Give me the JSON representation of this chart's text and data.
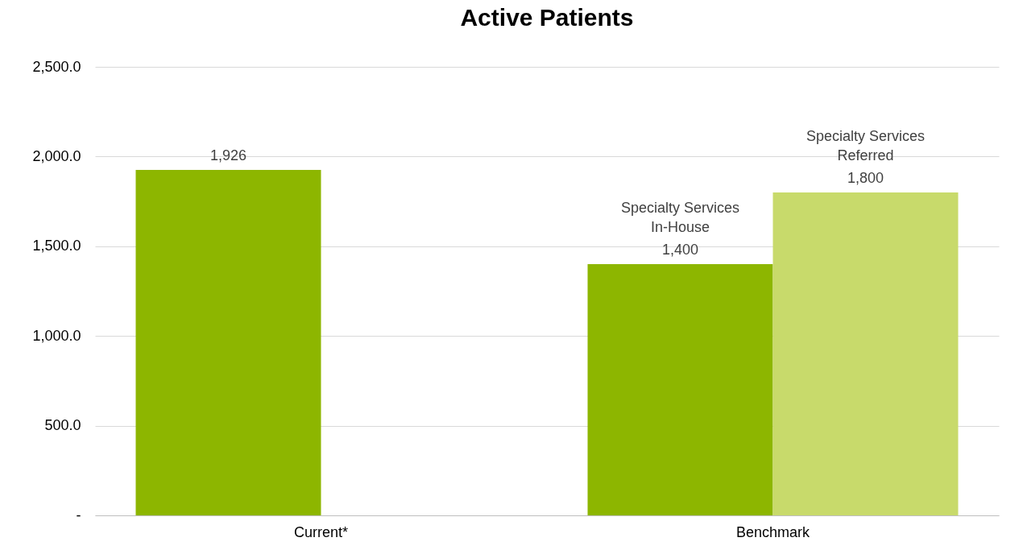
{
  "chart_data": {
    "type": "bar",
    "title": "Active Patients",
    "categories": [
      "Current*",
      "Benchmark"
    ],
    "series": [
      {
        "color": "#8db600",
        "values": [
          1926,
          null
        ],
        "value_labels": [
          "1,926",
          null
        ]
      },
      {
        "name": "Specialty Services\nIn-House",
        "color": "#8db600",
        "values": [
          null,
          1400
        ],
        "value_labels": [
          null,
          "1,400"
        ]
      },
      {
        "name": "Specialty Services\nReferred",
        "color": "#c8da6b",
        "values": [
          null,
          1800
        ],
        "value_labels": [
          null,
          "1,800"
        ]
      }
    ],
    "ylim": [
      0,
      2500
    ],
    "yticks": [
      {
        "value": 0,
        "label": "-"
      },
      {
        "value": 500,
        "label": "500.0"
      },
      {
        "value": 1000,
        "label": "1,000.0"
      },
      {
        "value": 1500,
        "label": "1,500.0"
      },
      {
        "value": 2000,
        "label": "2,000.0"
      },
      {
        "value": 2500,
        "label": "2,500.0"
      }
    ],
    "grid": "y"
  }
}
